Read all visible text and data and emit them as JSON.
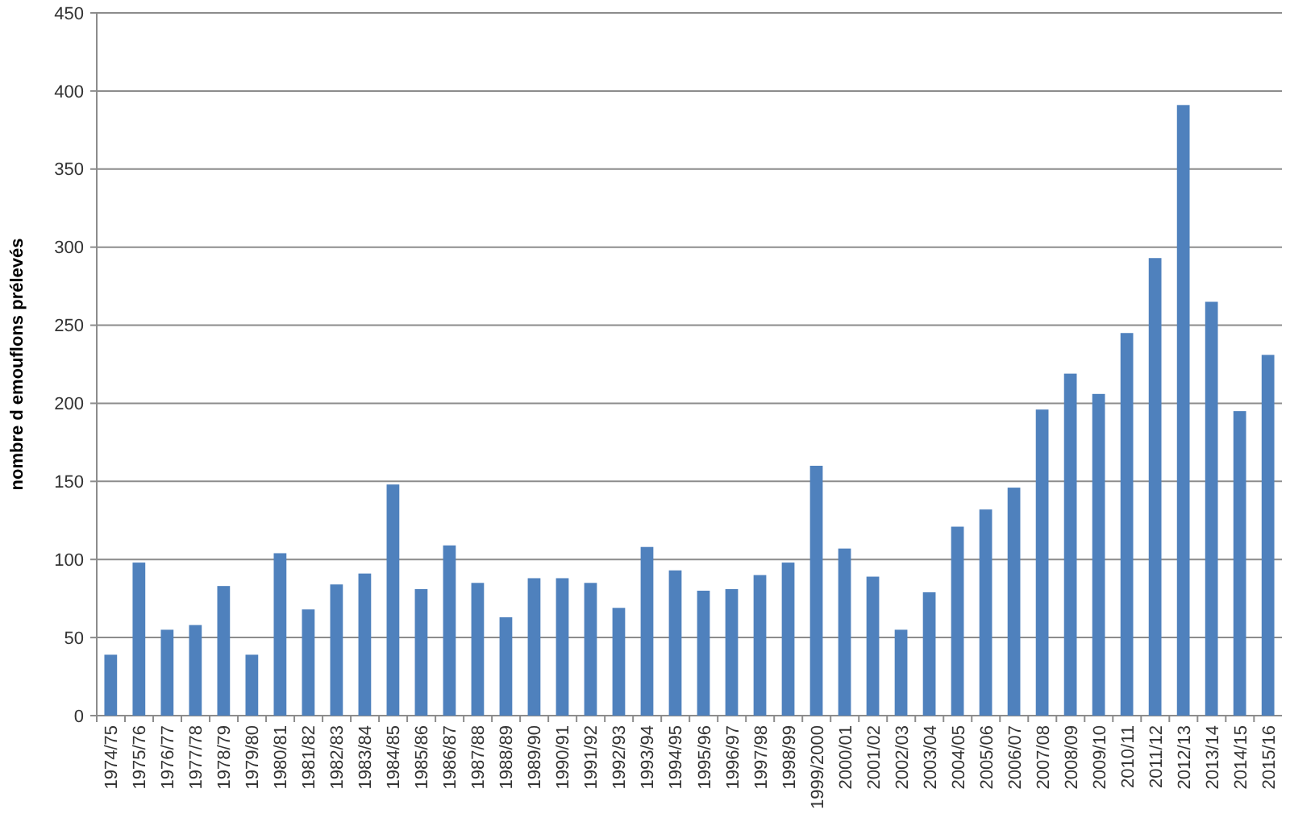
{
  "chart_data": {
    "type": "bar",
    "ylabel": "nombre d emouflons prélevés",
    "categories": [
      "1974/75",
      "1975/76",
      "1976/77",
      "1977/78",
      "1978/79",
      "1979/80",
      "1980/81",
      "1981/82",
      "1982/83",
      "1983/84",
      "1984/85",
      "1985/86",
      "1986/87",
      "1987/88",
      "1988/89",
      "1989/90",
      "1990/91",
      "1991/92",
      "1992/93",
      "1993/94",
      "1994/95",
      "1995/96",
      "1996/97",
      "1997/98",
      "1998/99",
      "1999/2000",
      "2000/01",
      "2001/02",
      "2002/03",
      "2003/04",
      "2004/05",
      "2005/06",
      "2006/07",
      "2007/08",
      "2008/09",
      "2009/10",
      "2010/11",
      "2011/12",
      "2012/13",
      "2013/14",
      "2014/15",
      "2015/16"
    ],
    "values": [
      39,
      98,
      55,
      58,
      83,
      39,
      104,
      68,
      84,
      91,
      148,
      81,
      109,
      85,
      63,
      88,
      88,
      85,
      69,
      108,
      93,
      80,
      81,
      90,
      98,
      160,
      107,
      89,
      55,
      79,
      121,
      132,
      146,
      196,
      219,
      206,
      245,
      293,
      391,
      265,
      195,
      231
    ],
    "color": "#4f81bd",
    "ylim": [
      0,
      450
    ],
    "yticks": [
      0,
      50,
      100,
      150,
      200,
      250,
      300,
      350,
      400,
      450
    ],
    "grid": "y"
  }
}
